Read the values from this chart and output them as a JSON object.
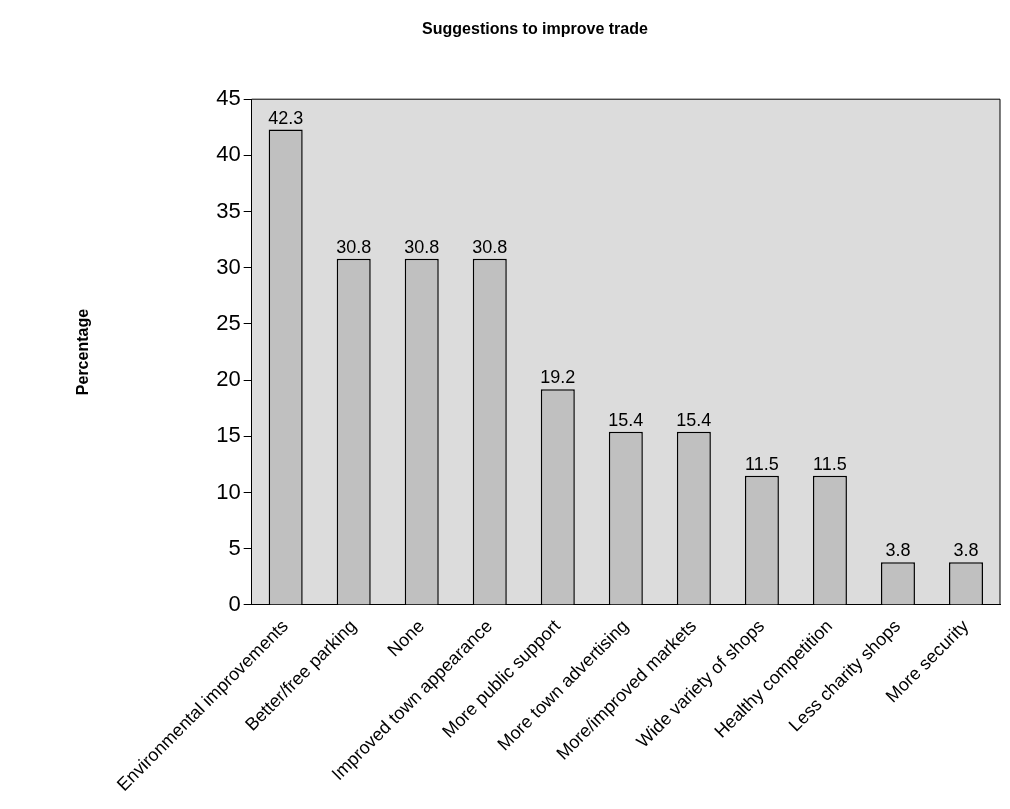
{
  "chart_data": {
    "type": "bar",
    "title": "Suggestions to improve trade",
    "ylabel": "Percentage",
    "categories": [
      "Environmental improvements",
      "Better/free parking",
      "None",
      "Improved town appearance",
      "More public support",
      "More town advertising",
      "More/improved markets",
      "Wide variety of shops",
      "Healthy competition",
      "Less charity shops",
      "More security"
    ],
    "values": [
      42.3,
      30.8,
      30.8,
      30.8,
      19.2,
      15.4,
      15.4,
      11.5,
      11.5,
      3.8,
      3.8
    ],
    "color": "#c0c0c0",
    "ylim": [
      0,
      45
    ],
    "yticks": [
      0,
      5,
      10,
      15,
      20,
      25,
      30,
      35,
      40,
      45
    ],
    "grid": false,
    "legend": false,
    "data_labels": true
  }
}
